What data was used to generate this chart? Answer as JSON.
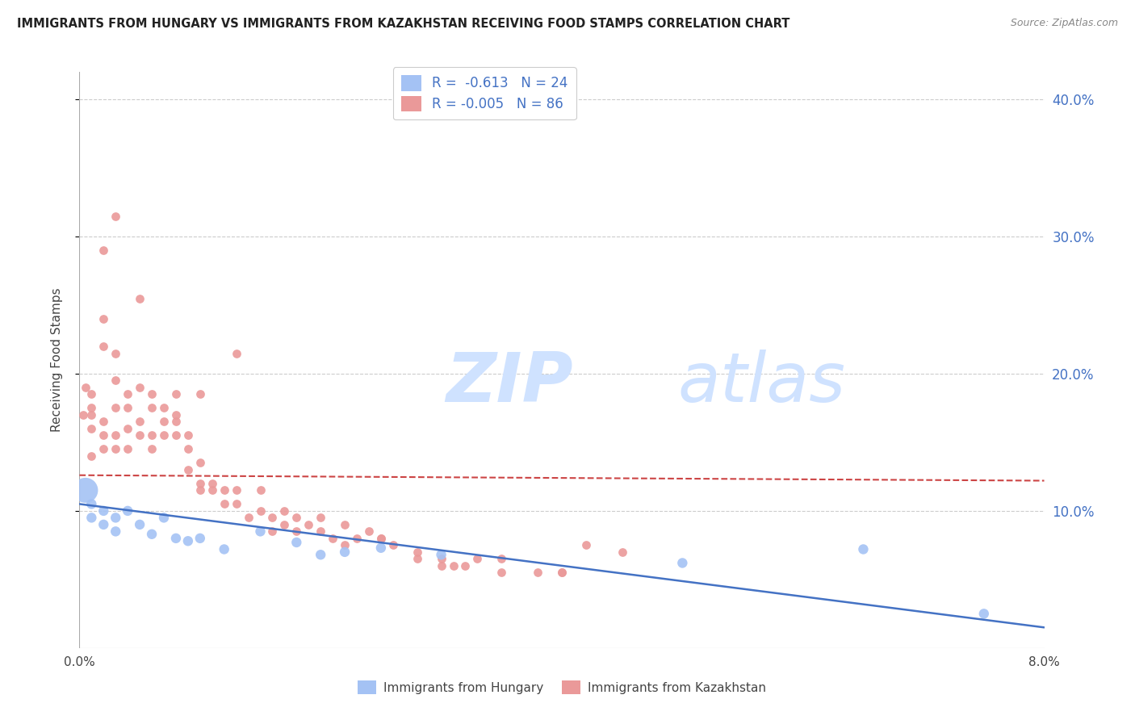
{
  "title": "IMMIGRANTS FROM HUNGARY VS IMMIGRANTS FROM KAZAKHSTAN RECEIVING FOOD STAMPS CORRELATION CHART",
  "source": "Source: ZipAtlas.com",
  "ylabel": "Receiving Food Stamps",
  "xlim": [
    0.0,
    0.08
  ],
  "ylim": [
    0.0,
    0.42
  ],
  "right_yticklabels": [
    "10.0%",
    "20.0%",
    "30.0%",
    "40.0%"
  ],
  "right_ytick_vals": [
    0.1,
    0.2,
    0.3,
    0.4
  ],
  "hungary_R": -0.613,
  "hungary_N": 24,
  "kazakhstan_R": -0.005,
  "kazakhstan_N": 86,
  "hungary_color": "#a4c2f4",
  "kazakhstan_color": "#ea9999",
  "hungary_line_color": "#4472c4",
  "kazakhstan_line_color": "#cc4444",
  "watermark_zip": "ZIP",
  "watermark_atlas": "atlas",
  "watermark_color": "#cfe2ff",
  "legend_hungary_label": "Immigrants from Hungary",
  "legend_kazakhstan_label": "Immigrants from Kazakhstan",
  "value_color": "#4472c4",
  "label_color": "#666666",
  "grid_color": "#cccccc",
  "title_color": "#222222",
  "axis_color": "#4472c4",
  "background_color": "#ffffff",
  "hungary_x": [
    0.0005,
    0.001,
    0.001,
    0.002,
    0.002,
    0.003,
    0.003,
    0.004,
    0.005,
    0.006,
    0.007,
    0.008,
    0.009,
    0.01,
    0.012,
    0.015,
    0.018,
    0.02,
    0.022,
    0.025,
    0.03,
    0.05,
    0.065,
    0.075
  ],
  "hungary_y": [
    0.115,
    0.095,
    0.105,
    0.09,
    0.1,
    0.085,
    0.095,
    0.1,
    0.09,
    0.083,
    0.095,
    0.08,
    0.078,
    0.08,
    0.072,
    0.085,
    0.077,
    0.068,
    0.07,
    0.073,
    0.068,
    0.062,
    0.072,
    0.025
  ],
  "hungary_sizes": [
    500,
    80,
    80,
    80,
    80,
    80,
    80,
    80,
    80,
    80,
    80,
    80,
    80,
    80,
    80,
    80,
    80,
    80,
    80,
    80,
    80,
    80,
    80,
    80
  ],
  "kazakhstan_x": [
    0.0003,
    0.0005,
    0.001,
    0.001,
    0.001,
    0.001,
    0.001,
    0.002,
    0.002,
    0.002,
    0.002,
    0.002,
    0.003,
    0.003,
    0.003,
    0.003,
    0.003,
    0.004,
    0.004,
    0.004,
    0.004,
    0.005,
    0.005,
    0.005,
    0.006,
    0.006,
    0.006,
    0.006,
    0.007,
    0.007,
    0.007,
    0.008,
    0.008,
    0.008,
    0.009,
    0.009,
    0.009,
    0.01,
    0.01,
    0.01,
    0.011,
    0.011,
    0.012,
    0.012,
    0.013,
    0.013,
    0.014,
    0.015,
    0.015,
    0.016,
    0.016,
    0.017,
    0.017,
    0.018,
    0.018,
    0.019,
    0.02,
    0.02,
    0.021,
    0.022,
    0.022,
    0.023,
    0.024,
    0.025,
    0.025,
    0.026,
    0.028,
    0.028,
    0.03,
    0.03,
    0.031,
    0.032,
    0.033,
    0.035,
    0.035,
    0.038,
    0.04,
    0.04,
    0.042,
    0.045,
    0.002,
    0.003,
    0.005,
    0.008,
    0.01,
    0.013
  ],
  "kazakhstan_y": [
    0.17,
    0.19,
    0.14,
    0.16,
    0.17,
    0.175,
    0.185,
    0.145,
    0.155,
    0.165,
    0.22,
    0.24,
    0.145,
    0.155,
    0.175,
    0.195,
    0.215,
    0.145,
    0.16,
    0.175,
    0.185,
    0.155,
    0.165,
    0.19,
    0.145,
    0.155,
    0.175,
    0.185,
    0.155,
    0.165,
    0.175,
    0.155,
    0.165,
    0.17,
    0.13,
    0.145,
    0.155,
    0.12,
    0.135,
    0.115,
    0.12,
    0.115,
    0.115,
    0.105,
    0.115,
    0.105,
    0.095,
    0.1,
    0.115,
    0.095,
    0.085,
    0.09,
    0.1,
    0.095,
    0.085,
    0.09,
    0.085,
    0.095,
    0.08,
    0.075,
    0.09,
    0.08,
    0.085,
    0.08,
    0.08,
    0.075,
    0.07,
    0.065,
    0.065,
    0.06,
    0.06,
    0.06,
    0.065,
    0.065,
    0.055,
    0.055,
    0.055,
    0.055,
    0.075,
    0.07,
    0.29,
    0.315,
    0.255,
    0.185,
    0.185,
    0.215
  ],
  "kazakhstan_size": 60
}
